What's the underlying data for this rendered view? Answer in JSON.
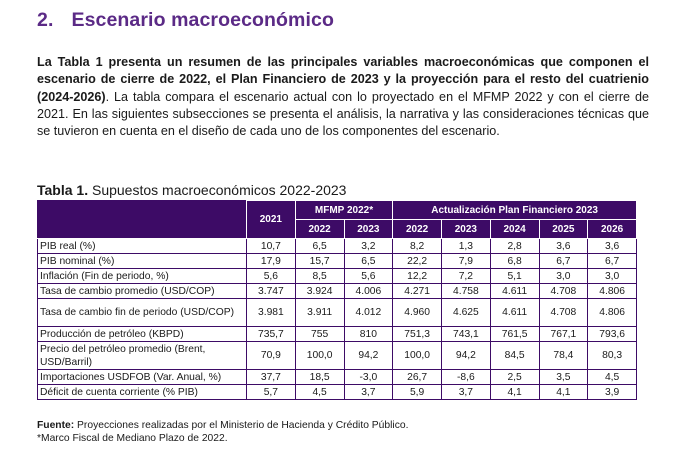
{
  "heading": {
    "number": "2.",
    "title": "Escenario macroeconómico"
  },
  "intro": {
    "bold": "La Tabla 1 presenta un resumen de las principales variables macroeconómicas que componen el escenario de cierre de 2022, el Plan Financiero de 2023 y la proyección para el resto del cuatrienio (2024-2026)",
    "rest": ". La tabla compara el escenario actual con lo proyectado en el MFMP 2022 y con el cierre de 2021. En las siguientes subsecciones se presenta el análisis, la narrativa y las consideraciones técnicas que se tuvieron en cuenta en el diseño de cada uno de los componentes del escenario."
  },
  "caption": {
    "label": "Tabla 1.",
    "text": " Supuestos macroeconómicos 2022-2023"
  },
  "table": {
    "group_headers": {
      "year_2021": "2021",
      "mfmp": "MFMP 2022*",
      "plan": "Actualización Plan Financiero 2023"
    },
    "year_headers": [
      "2022",
      "2023",
      "2022",
      "2023",
      "2024",
      "2025",
      "2026"
    ],
    "rows": [
      {
        "label": "PIB real (%)",
        "values": [
          "10,7",
          "6,5",
          "3,2",
          "8,2",
          "1,3",
          "2,8",
          "3,6",
          "3,6"
        ]
      },
      {
        "label": "PIB nominal (%)",
        "values": [
          "17,9",
          "15,7",
          "6,5",
          "22,2",
          "7,9",
          "6,8",
          "6,7",
          "6,7"
        ]
      },
      {
        "label": "Inflación (Fin de periodo, %)",
        "values": [
          "5,6",
          "8,5",
          "5,6",
          "12,2",
          "7,2",
          "5,1",
          "3,0",
          "3,0"
        ]
      },
      {
        "label": "Tasa de cambio promedio (USD/COP)",
        "values": [
          "3.747",
          "3.924",
          "4.006",
          "4.271",
          "4.758",
          "4.611",
          "4.708",
          "4.806"
        ]
      },
      {
        "label": "Tasa de cambio fin de periodo (USD/COP)",
        "values": [
          "3.981",
          "3.911",
          "4.012",
          "4.960",
          "4.625",
          "4.611",
          "4.708",
          "4.806"
        ]
      },
      {
        "label": "Producción de petróleo (KBPD)",
        "values": [
          "735,7",
          "755",
          "810",
          "751,3",
          "743,1",
          "761,5",
          "767,1",
          "793,6"
        ]
      },
      {
        "label": "Precio del petróleo promedio (Brent, USD/Barril)",
        "values": [
          "70,9",
          "100,0",
          "94,2",
          "100,0",
          "94,2",
          "84,5",
          "78,4",
          "80,3"
        ]
      },
      {
        "label": "Importaciones USDFOB (Var. Anual, %)",
        "values": [
          "37,7",
          "18,5",
          "-3,0",
          "26,7",
          "-8,6",
          "2,5",
          "3,5",
          "4,5"
        ]
      },
      {
        "label": "Déficit de cuenta corriente (% PIB)",
        "values": [
          "5,7",
          "4,5",
          "3,7",
          "5,9",
          "3,7",
          "4,1",
          "4,1",
          "3,9"
        ]
      }
    ]
  },
  "source": {
    "label": "Fuente:",
    "text": " Proyecciones realizadas por el Ministerio de Hacienda y Crédito Público.",
    "note": "*Marco Fiscal de Mediano Plazo de 2022."
  }
}
